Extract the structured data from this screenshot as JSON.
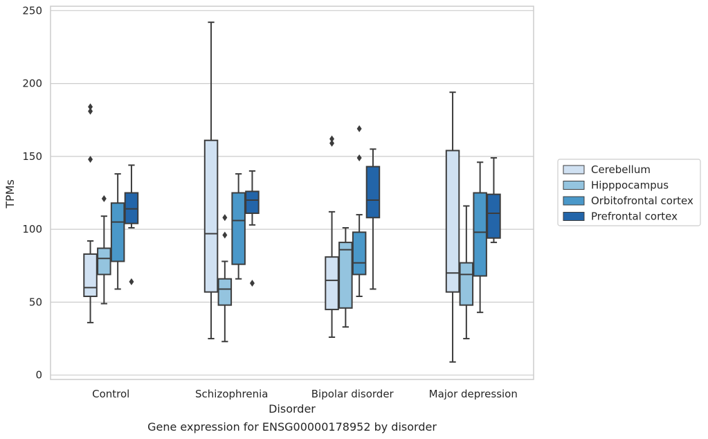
{
  "chart_data": {
    "type": "box",
    "xlabel": "Disorder",
    "ylabel": "TPMs",
    "caption": "Gene expression for ENSG00000178952 by disorder",
    "ylim": [
      -3,
      253
    ],
    "yticks": [
      0,
      50,
      100,
      150,
      200,
      250
    ],
    "grid": "horizontal",
    "legend_position": "right",
    "categories": [
      "Control",
      "Schizophrenia",
      "Bipolar disorder",
      "Major depression"
    ],
    "series": [
      {
        "name": "Cerebellum",
        "color": "#d0e1f2",
        "boxes": [
          {
            "whisker_low": 36,
            "q1": 54,
            "median": 60,
            "q3": 83,
            "whisker_high": 92,
            "outliers": [
              148,
              181,
              184
            ]
          },
          {
            "whisker_low": 25,
            "q1": 57,
            "median": 97,
            "q3": 161,
            "whisker_high": 242,
            "outliers": []
          },
          {
            "whisker_low": 26,
            "q1": 45,
            "median": 65,
            "q3": 81,
            "whisker_high": 112,
            "outliers": [
              159,
              162
            ]
          },
          {
            "whisker_low": 9,
            "q1": 57,
            "median": 70,
            "q3": 154,
            "whisker_high": 194,
            "outliers": []
          }
        ]
      },
      {
        "name": "Hipppocampus",
        "color": "#94c4df",
        "boxes": [
          {
            "whisker_low": 49,
            "q1": 69,
            "median": 80,
            "q3": 87,
            "whisker_high": 109,
            "outliers": [
              121
            ]
          },
          {
            "whisker_low": 23,
            "q1": 48,
            "median": 59,
            "q3": 66,
            "whisker_high": 78,
            "outliers": [
              96,
              108
            ]
          },
          {
            "whisker_low": 33,
            "q1": 46,
            "median": 86,
            "q3": 91,
            "whisker_high": 101,
            "outliers": []
          },
          {
            "whisker_low": 25,
            "q1": 48,
            "median": 69,
            "q3": 77,
            "whisker_high": 116,
            "outliers": []
          }
        ]
      },
      {
        "name": "Orbitofrontal cortex",
        "color": "#4a98c9",
        "boxes": [
          {
            "whisker_low": 59,
            "q1": 78,
            "median": 105,
            "q3": 118,
            "whisker_high": 138,
            "outliers": []
          },
          {
            "whisker_low": 66,
            "q1": 76,
            "median": 106,
            "q3": 125,
            "whisker_high": 138,
            "outliers": []
          },
          {
            "whisker_low": 54,
            "q1": 69,
            "median": 77,
            "q3": 98,
            "whisker_high": 110,
            "outliers": [
              149,
              169
            ]
          },
          {
            "whisker_low": 43,
            "q1": 68,
            "median": 98,
            "q3": 125,
            "whisker_high": 146,
            "outliers": []
          }
        ]
      },
      {
        "name": "Prefrontal cortex",
        "color": "#2365a9",
        "boxes": [
          {
            "whisker_low": 101,
            "q1": 104,
            "median": 114,
            "q3": 125,
            "whisker_high": 144,
            "outliers": [
              64
            ]
          },
          {
            "whisker_low": 103,
            "q1": 111,
            "median": 120,
            "q3": 126,
            "whisker_high": 140,
            "outliers": [
              63
            ]
          },
          {
            "whisker_low": 59,
            "q1": 108,
            "median": 120,
            "q3": 143,
            "whisker_high": 155,
            "outliers": []
          },
          {
            "whisker_low": 91,
            "q1": 94,
            "median": 111,
            "q3": 124,
            "whisker_high": 149,
            "outliers": []
          }
        ]
      }
    ]
  }
}
